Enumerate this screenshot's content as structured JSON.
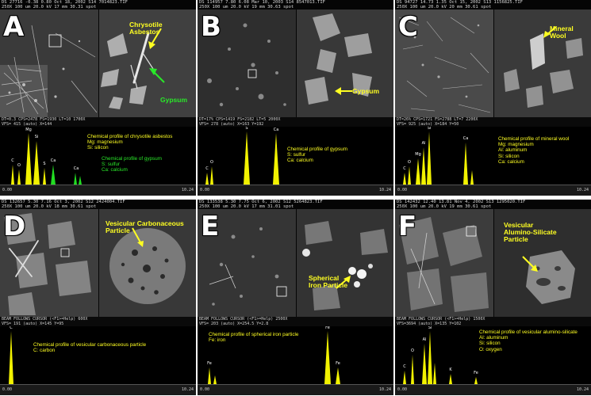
{
  "panels": [
    {
      "letter": "A",
      "header1": "DS 27716  -0.38  0.80       Oct 18, 2002       S14 7014823.TIF",
      "header2": "  250X                 100 um    20.0 kV   17 mm    30.31 spot",
      "status1": "DT=0.3 CPS=2478  FS=1930  LT=10      1700X",
      "status2": "VFS= 415 (auto)                       X=144",
      "annotations": [
        {
          "text": "Chrysotile\nAsbestos",
          "color": "yellow"
        },
        {
          "text": "Gypsum",
          "color": "green"
        }
      ],
      "profiles": [
        {
          "lines": [
            "Chemical profile of chrysotile asbestos",
            "Mg: magnesium",
            "Si: silicon"
          ],
          "color": "yellow"
        },
        {
          "lines": [
            "Chemical profile of gypsum",
            "S: sulfur",
            "Ca: calcium"
          ],
          "color": "green"
        }
      ],
      "spectrum_labels": [
        "C",
        "O",
        "Mg",
        "Si",
        "S",
        "Ca",
        "Ca"
      ],
      "footer_left": "0.00",
      "footer_right": "10.24"
    },
    {
      "letter": "B",
      "header1": "DS 114957  7.80  6.08      Mar 10, 2003       S14 8547013.TIF",
      "header2": "  250X                 100 um    20.0 kV   19 mm    30.63 spot",
      "status1": "DT=17% CPS=1419  FS=2182  LT=5       2000X",
      "status2": "VFS= 278 (auto)                       X=163   Y=192",
      "annotations": [
        {
          "text": "Gypsum",
          "color": "yellow"
        }
      ],
      "profiles": [
        {
          "lines": [
            "Chemical profile of gypsum",
            "S: sulfur",
            "Ca: calcium"
          ],
          "color": "yellow"
        }
      ],
      "spectrum_labels": [
        "C",
        "O",
        "S",
        "Ca"
      ],
      "footer_left": "0.00",
      "footer_right": "10.24"
    },
    {
      "letter": "C",
      "header1": "DS 94727  14.73  1.35      Oct 15, 2002       S13 1156825.TIF",
      "header2": "  250X                 100 um    20.0 kV   20 mm    30.61 spot",
      "status1": "DT=26% CPS=1721  FS=2788  LT=7       2200X",
      "status2": "VFS= 925 (auto)                       X=184   Y=50",
      "annotations": [
        {
          "text": "Mineral Wool",
          "color": "yellow"
        }
      ],
      "profiles": [
        {
          "lines": [
            "Chemical profile of mineral wool",
            "Mg: magnesium",
            "Al: aluminum",
            "Si: silicon",
            "Ca: calcium"
          ],
          "color": "yellow"
        }
      ],
      "spectrum_labels": [
        "C",
        "O",
        "Mg",
        "Al",
        "Si",
        "Ca"
      ],
      "footer_left": "0.00",
      "footer_right": "10.24"
    },
    {
      "letter": "D",
      "header1": "DS 132657  5.30  7.16      Oct 3, 2002        S12 2424004.TIF",
      "header2": "  250X                 100 um    20.0 kV   18 mm    30.61 spot",
      "status1": "BEAM FOLLOWS CURSOR (<F1>=Help)    600X",
      "status2": "VFS= 191 (auto)                       X=145   Y=95",
      "annotations": [
        {
          "text": "Vesicular Carbonaceous\nParticle",
          "color": "yellow"
        }
      ],
      "profiles": [
        {
          "lines": [
            "Chemical profile of vesicular carbonaceous particle",
            "C: carbon"
          ],
          "color": "yellow"
        }
      ],
      "spectrum_labels": [
        "C"
      ],
      "footer_left": "0.00",
      "footer_right": "10.24"
    },
    {
      "letter": "E",
      "header1": "DS 133538  5.30  7.75      Oct 6, 2002        S12 5264823.TIF",
      "header2": "  250X                 100 um    20.0 kV   17 mm    31.01 spot",
      "status1": "BEAM FOLLOWS CURSOR (<F1>=Help)    2500X",
      "status2": "VFS= 203 (auto)                       X=254.5  Y=2.8",
      "annotations": [
        {
          "text": "Spherical\nIron Particle",
          "color": "yellow"
        }
      ],
      "profiles": [
        {
          "lines": [
            "Chemical profile of spherical iron particle",
            "Fe: iron"
          ],
          "color": "yellow"
        }
      ],
      "spectrum_labels": [
        "Fe",
        "Fe",
        "Fe"
      ],
      "footer_left": "0.00",
      "footer_right": "10.24"
    },
    {
      "letter": "F",
      "header1": "DS 142432  12.40  13.81    Nov 4, 2002        S13 1295020.TIF",
      "header2": "  250X                 100 um    20.0 kV   19 mm    30.61 spot",
      "status1": "BEAM FOLLOWS CURSOR (<F1>=Help)    1500X",
      "status2": "VFS=3694 (auto)                       X=135   Y=102",
      "annotations": [
        {
          "text": "Vesicular\nAlumino-Silicate\nParticle",
          "color": "yellow"
        }
      ],
      "profiles": [
        {
          "lines": [
            "Chemical profile of vesicular alumino-silicate",
            "Al: aluminum",
            "Si: silicon",
            "O: oxygen"
          ],
          "color": "yellow"
        }
      ],
      "spectrum_labels": [
        "C",
        "O",
        "Al",
        "Si",
        "K",
        "Fe"
      ],
      "footer_left": "0.00",
      "footer_right": "10.24"
    }
  ],
  "colors": {
    "annotation_yellow": "#ffff22",
    "annotation_green": "#29e829",
    "spectrum_peak": "#f2f200",
    "spectrum_peak_green": "#22dd22"
  }
}
